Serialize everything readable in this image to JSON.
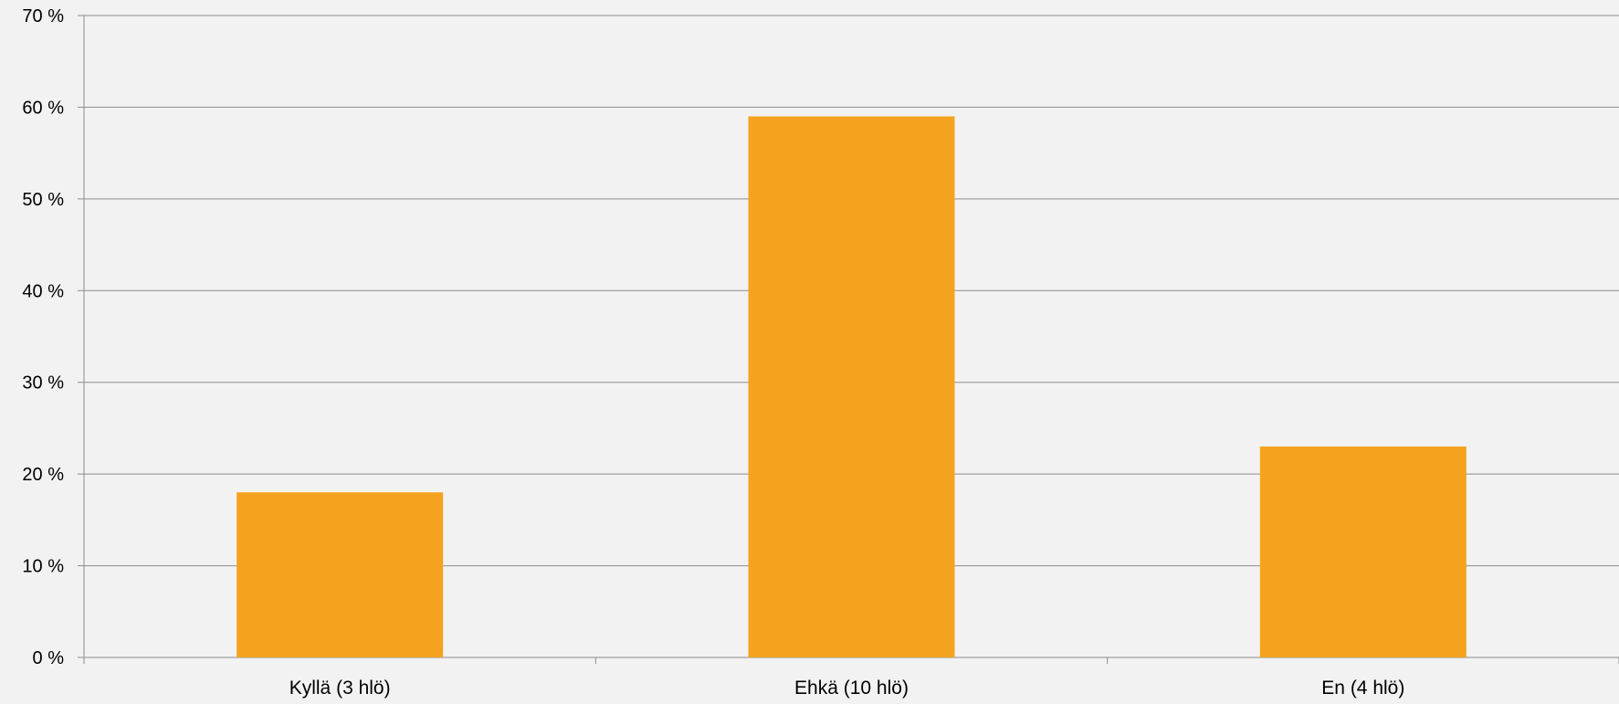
{
  "chart_data": {
    "type": "bar",
    "categories": [
      "Kyllä (3 hlö)",
      "Ehkä (10 hlö)",
      "En (4 hlö)"
    ],
    "values": [
      18,
      59,
      23
    ],
    "unit": "%",
    "ylim": [
      0,
      70
    ],
    "yticks": [
      0,
      10,
      20,
      30,
      40,
      50,
      60,
      70
    ],
    "ytick_labels": [
      "0 %",
      "10 %",
      "20 %",
      "30 %",
      "40 %",
      "50 %",
      "60 %",
      "70 %"
    ],
    "grid": true,
    "legend": "none",
    "title": "",
    "xlabel": "",
    "ylabel": "",
    "colors": {
      "bar": "#f5a31f",
      "grid": "#8c8c8c",
      "axis": "#8c8c8c",
      "background": "#f2f2f2"
    }
  }
}
